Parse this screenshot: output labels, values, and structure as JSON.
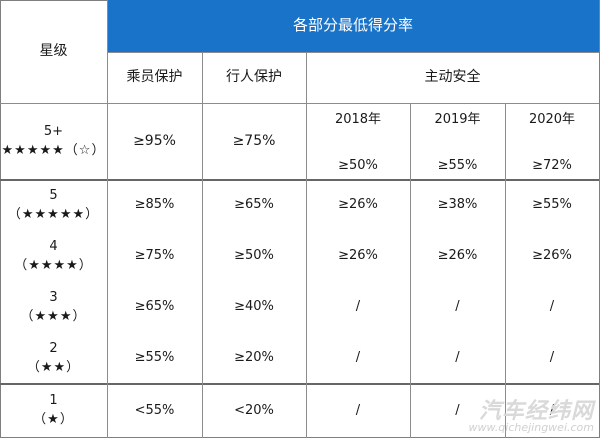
{
  "header": {
    "star_level": "星级",
    "lowest_score": "各部分最低得分率",
    "occupant": "乘员保护",
    "pedestrian": "行人保护",
    "active_safety": "主动安全",
    "years": [
      "2018年",
      "2019年",
      "2020年"
    ]
  },
  "rows": [
    {
      "level": "5+",
      "stars": "★★★★★（☆）",
      "occupant": "≥95%",
      "pedestrian": "≥75%",
      "y2018": "≥50%",
      "y2019": "≥55%",
      "y2020": "≥72%"
    },
    {
      "level": "5",
      "stars": "（★★★★★）",
      "occupant": "≥85%",
      "pedestrian": "≥65%",
      "y2018": "≥26%",
      "y2019": "≥38%",
      "y2020": "≥55%"
    },
    {
      "level": "4",
      "stars": "（★★★★）",
      "occupant": "≥75%",
      "pedestrian": "≥50%",
      "y2018": "≥26%",
      "y2019": "≥26%",
      "y2020": "≥26%"
    },
    {
      "level": "3",
      "stars": "（★★★）",
      "occupant": "≥65%",
      "pedestrian": "≥40%",
      "y2018": "/",
      "y2019": "/",
      "y2020": "/"
    },
    {
      "level": "2",
      "stars": "（★★）",
      "occupant": "≥55%",
      "pedestrian": "≥20%",
      "y2018": "/",
      "y2019": "/",
      "y2020": "/"
    },
    {
      "level": "1",
      "stars": "（★）",
      "occupant": "<55%",
      "pedestrian": "<20%",
      "y2018": "/",
      "y2019": "/",
      "y2020": "/"
    }
  ],
  "watermark": {
    "text": "汽车经纬网",
    "url": "www.qichejingwei.com"
  },
  "colors": {
    "header_bg": "#1873c9",
    "header_text": "#ffffff"
  }
}
